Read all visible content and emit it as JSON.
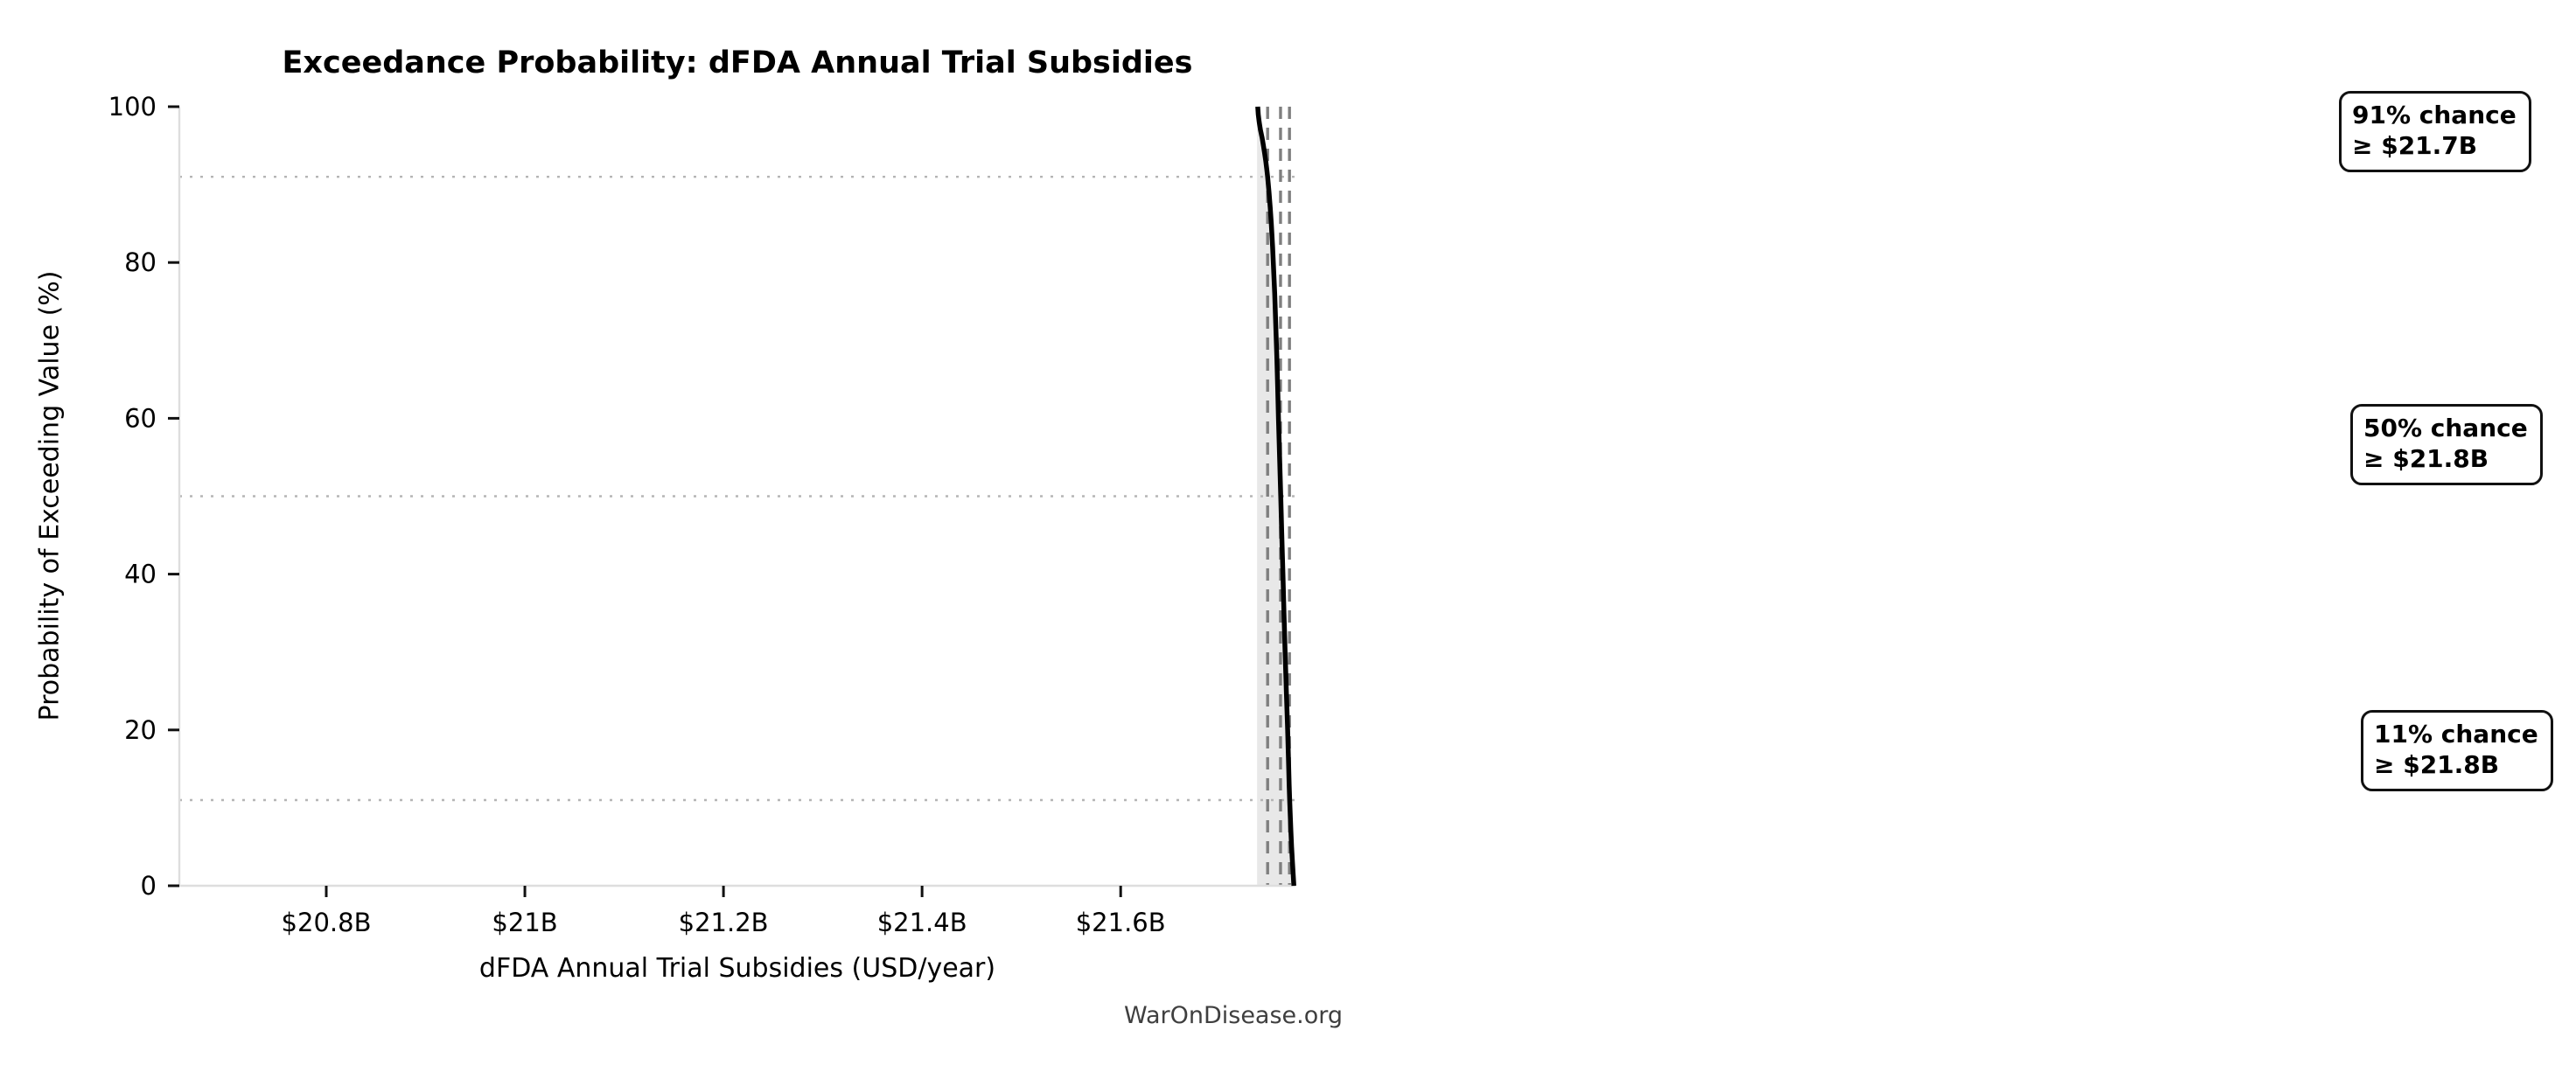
{
  "title": "Exceedance Probability: dFDA Annual Trial Subsidies",
  "watermark": "WarOnDisease.org",
  "chart_data": {
    "type": "line",
    "title": "Exceedance Probability: dFDA Annual Trial Subsidies",
    "xlabel": "dFDA Annual Trial Subsidies (USD/year)",
    "ylabel": "Probability of Exceeding Value (%)",
    "x_unit": "USD billions per year",
    "xlim": [
      20.652,
      21.776
    ],
    "ylim": [
      0,
      100
    ],
    "grid": "dotted horizontal reference lines at annotated probabilities only",
    "legend": "none",
    "x_ticks": [
      {
        "value": 20.8,
        "label": "$20.8B"
      },
      {
        "value": 21.0,
        "label": "$21B"
      },
      {
        "value": 21.2,
        "label": "$21.2B"
      },
      {
        "value": 21.4,
        "label": "$21.4B"
      },
      {
        "value": 21.6,
        "label": "$21.6B"
      }
    ],
    "y_ticks": [
      {
        "value": 0,
        "label": "0"
      },
      {
        "value": 20,
        "label": "20"
      },
      {
        "value": 40,
        "label": "40"
      },
      {
        "value": 60,
        "label": "60"
      },
      {
        "value": 80,
        "label": "80"
      },
      {
        "value": 100,
        "label": "100"
      }
    ],
    "series": [
      {
        "name": "exceedance_curve",
        "x": [
          21.738,
          21.7386,
          21.7395,
          21.7408,
          21.7424,
          21.7438,
          21.745,
          21.7461,
          21.7471,
          21.748,
          21.7494,
          21.7506,
          21.7517,
          21.753,
          21.7541,
          21.7551,
          21.7562,
          21.7572,
          21.7581,
          21.7589,
          21.7601,
          21.7612,
          21.7623,
          21.7634,
          21.7645,
          21.7656,
          21.7668,
          21.7682,
          21.769,
          21.7697,
          21.7702,
          21.7708,
          21.7714,
          21.7721,
          21.773,
          21.7737,
          21.7744
        ],
        "y": [
          100,
          99,
          98,
          97,
          96,
          95,
          94,
          93,
          92,
          91,
          89,
          87,
          85,
          82,
          79,
          76,
          72,
          68,
          64,
          60,
          55,
          50,
          45,
          40,
          35,
          30,
          25,
          20,
          16,
          13,
          11,
          9,
          7,
          5,
          3,
          1.5,
          0
        ]
      }
    ],
    "area_fill": {
      "left_value": 21.7374,
      "description": "light gray area between the curve and its minimum value"
    },
    "reference_lines": {
      "horizontal_dotted_pct": [
        91,
        50,
        11
      ],
      "vertical_dashed_values": [
        21.748,
        21.761,
        21.77
      ]
    },
    "annotations": [
      {
        "line1": "91% chance",
        "line2": "≥ $21.7B",
        "probability_pct": 91,
        "value_label": "$21.7B"
      },
      {
        "line1": "50% chance",
        "line2": "≥ $21.8B",
        "probability_pct": 50,
        "value_label": "$21.8B"
      },
      {
        "line1": "11% chance",
        "line2": "≥ $21.8B",
        "probability_pct": 11,
        "value_label": "$21.8B"
      }
    ],
    "colors": {
      "curve": "#000000",
      "area": "#e8e8e8",
      "dashed": "#7f7f7f",
      "dotted": "#b5b5b5",
      "spine": "#dedede",
      "tick": "#111111",
      "text": "#000000",
      "watermark": "#3f3f3f"
    }
  }
}
